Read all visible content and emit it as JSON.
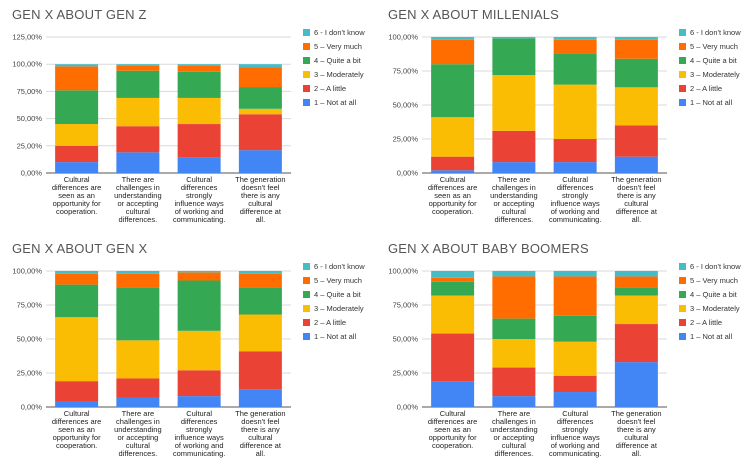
{
  "colors": {
    "s1": "#4285F4",
    "s2": "#EA4335",
    "s3": "#FBBC04",
    "s4": "#34A853",
    "s5": "#FF6D01",
    "s6": "#46BDC6",
    "grid": "#d9d9d9",
    "axis": "#555555"
  },
  "legend": [
    "6 - I don't know",
    "5 – Very much",
    "4 – Quite a bit",
    "3 – Moderately",
    "2 – A little",
    "1 – Not at all"
  ],
  "chart_data": [
    {
      "type": "bar",
      "stacked": true,
      "title": "GEN X ABOUT GEN Z",
      "ylim": [
        0,
        125
      ],
      "yticks": [
        "0,00%",
        "25,00%",
        "50,00%",
        "75,00%",
        "100,00%",
        "125,00%"
      ],
      "categories": [
        [
          "Cultural",
          "differences are",
          "seen as an",
          "opportunity for",
          "cooperation."
        ],
        [
          "There are",
          "challenges in",
          "understanding",
          "or accepting",
          "cultural",
          "differences."
        ],
        [
          "Cultural",
          "differences",
          "strongly",
          "influence ways",
          "of working and",
          "communicating."
        ],
        [
          "The generation",
          "doesn't feel",
          "there is any",
          "cultural",
          "difference at",
          "all."
        ]
      ],
      "series": [
        {
          "name": "1 – Not at all",
          "values": [
            10,
            19,
            14,
            21
          ]
        },
        {
          "name": "2 – A little",
          "values": [
            15,
            24,
            31,
            33
          ]
        },
        {
          "name": "3 – Moderately",
          "values": [
            20,
            26,
            24,
            5
          ]
        },
        {
          "name": "4 – Quite a bit",
          "values": [
            31,
            25,
            24,
            20
          ]
        },
        {
          "name": "5 – Very much",
          "values": [
            22,
            5,
            6,
            18
          ]
        },
        {
          "name": "6 - I don't know",
          "values": [
            2,
            1,
            1,
            3
          ]
        }
      ],
      "legend_position": "right",
      "grid": true
    },
    {
      "type": "bar",
      "stacked": true,
      "title": "GEN X ABOUT MILLENIALS",
      "ylim": [
        0,
        100
      ],
      "yticks": [
        "0,00%",
        "25,00%",
        "50,00%",
        "75,00%",
        "100,00%"
      ],
      "categories": [
        [
          "Cultural",
          "differences are",
          "seen as an",
          "opportunity for",
          "cooperation."
        ],
        [
          "There are",
          "challenges in",
          "understanding",
          "or accepting",
          "cultural",
          "differences."
        ],
        [
          "Cultural",
          "differences",
          "strongly",
          "influence ways",
          "of working and",
          "communicating."
        ],
        [
          "The generation",
          "doesn't feel",
          "there is any",
          "cultural",
          "difference at",
          "all."
        ]
      ],
      "series": [
        {
          "name": "1 – Not at all",
          "values": [
            2,
            8,
            8,
            12
          ]
        },
        {
          "name": "2 – A little",
          "values": [
            10,
            23,
            17,
            23
          ]
        },
        {
          "name": "3 – Moderately",
          "values": [
            29,
            41,
            40,
            28
          ]
        },
        {
          "name": "4 – Quite a bit",
          "values": [
            39,
            27,
            23,
            21
          ]
        },
        {
          "name": "5 – Very much",
          "values": [
            18,
            0,
            10,
            14
          ]
        },
        {
          "name": "6 - I don't know",
          "values": [
            2,
            1,
            2,
            2
          ]
        }
      ],
      "legend_position": "right",
      "grid": true
    },
    {
      "type": "bar",
      "stacked": true,
      "title": "GEN X ABOUT GEN X",
      "ylim": [
        0,
        100
      ],
      "yticks": [
        "0,00%",
        "25,00%",
        "50,00%",
        "75,00%",
        "100,00%"
      ],
      "categories": [
        [
          "Cultural",
          "differences are",
          "seen as an",
          "opportunity for",
          "cooperation."
        ],
        [
          "There are",
          "challenges in",
          "understanding",
          "or accepting",
          "cultural",
          "differences."
        ],
        [
          "Cultural",
          "differences",
          "strongly",
          "influence ways",
          "of working and",
          "communicating."
        ],
        [
          "The generation",
          "doesn't feel",
          "there is any",
          "cultural",
          "difference at",
          "all."
        ]
      ],
      "series": [
        {
          "name": "1 – Not at all",
          "values": [
            4,
            7,
            8,
            13
          ]
        },
        {
          "name": "2 – A little",
          "values": [
            15,
            14,
            19,
            28
          ]
        },
        {
          "name": "3 – Moderately",
          "values": [
            47,
            28,
            29,
            27
          ]
        },
        {
          "name": "4 – Quite a bit",
          "values": [
            24,
            39,
            37,
            20
          ]
        },
        {
          "name": "5 – Very much",
          "values": [
            8,
            10,
            6,
            10
          ]
        },
        {
          "name": "6 - I don't know",
          "values": [
            2,
            2,
            1,
            2
          ]
        }
      ],
      "legend_position": "right",
      "grid": true
    },
    {
      "type": "bar",
      "stacked": true,
      "title": "GEN X ABOUT BABY BOOMERS",
      "ylim": [
        0,
        100
      ],
      "yticks": [
        "0,00%",
        "25,00%",
        "50,00%",
        "75,00%",
        "100,00%"
      ],
      "categories": [
        [
          "Cultural",
          "differences are",
          "seen as an",
          "opportunity for",
          "cooperation."
        ],
        [
          "There are",
          "challenges in",
          "understanding",
          "or accepting",
          "cultural",
          "differences."
        ],
        [
          "Cultural",
          "differences",
          "strongly",
          "influence ways",
          "of working and",
          "communicating."
        ],
        [
          "The generation",
          "doesn't feel",
          "there is any",
          "cultural",
          "difference at",
          "all."
        ]
      ],
      "series": [
        {
          "name": "1 – Not at all",
          "values": [
            19,
            8,
            11,
            33
          ]
        },
        {
          "name": "2 – A little",
          "values": [
            35,
            21,
            12,
            28
          ]
        },
        {
          "name": "3 – Moderately",
          "values": [
            28,
            21,
            25,
            21
          ]
        },
        {
          "name": "4 – Quite a bit",
          "values": [
            10,
            15,
            19,
            6
          ]
        },
        {
          "name": "5 – Very much",
          "values": [
            3,
            31,
            29,
            8
          ]
        },
        {
          "name": "6 - I don't know",
          "values": [
            5,
            4,
            4,
            4
          ]
        }
      ],
      "legend_position": "right",
      "grid": true
    }
  ]
}
